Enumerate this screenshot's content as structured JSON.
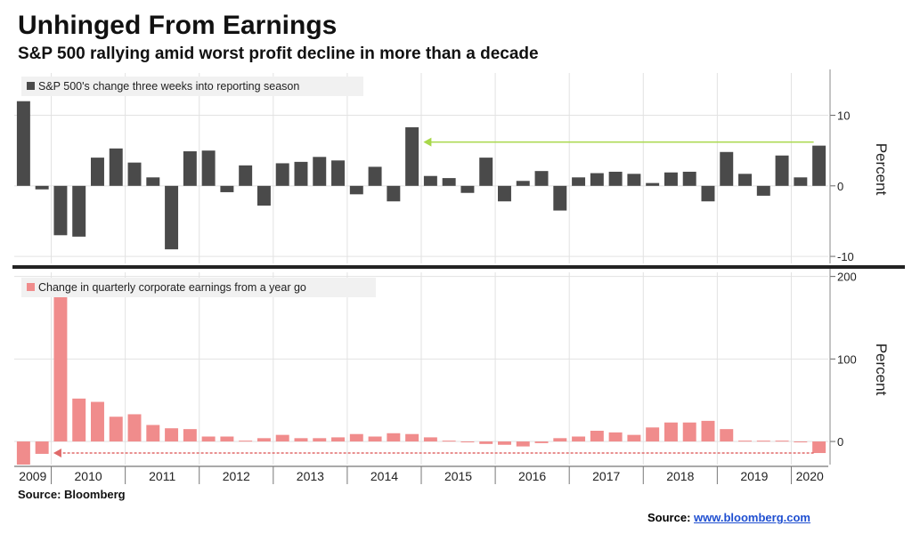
{
  "title": "Unhinged From Earnings",
  "subtitle": "S&P 500 rallying amid worst profit decline in more than a decade",
  "source": "Source: Bloomberg",
  "credit_prefix": "Source: ",
  "credit_link": "www.bloomberg.com",
  "colors": {
    "top_bars": "#4a4a4a",
    "bottom_bars": "#f08c8c",
    "top_arrow": "#a8d84a",
    "bottom_arrow": "#e06a6a",
    "divider": "#222222",
    "grid": "#e2e2e2"
  },
  "chart_data": [
    {
      "type": "bar",
      "legend": "S&P 500's change three weeks into reporting season",
      "ylabel": "Percent",
      "ylim": [
        -11,
        16
      ],
      "yticks": [
        10,
        0,
        -10
      ],
      "ytick_labels": [
        "10",
        "0",
        "-10"
      ],
      "values": [
        12,
        -0.5,
        -7,
        -7.2,
        4,
        5.3,
        3.3,
        1.2,
        -9,
        4.9,
        5,
        -0.9,
        2.9,
        -2.8,
        3.2,
        3.4,
        4.1,
        3.6,
        -1.2,
        2.7,
        -2.2,
        8.3,
        1.4,
        1.1,
        -1,
        4,
        -2.2,
        0.7,
        2.1,
        -3.5,
        1.2,
        1.8,
        2,
        1.7,
        0.4,
        1.9,
        2,
        -2.2,
        4.8,
        1.7,
        -1.4,
        4.3,
        1.2,
        5.7
      ]
    },
    {
      "type": "bar",
      "legend": "Change in quarterly corporate earnings from a year go",
      "ylabel": "Percent",
      "ylim": [
        -28,
        205
      ],
      "yticks": [
        200,
        100,
        0
      ],
      "ytick_labels": [
        "200",
        "100",
        "0"
      ],
      "values": [
        -28,
        -15,
        175,
        52,
        48,
        30,
        33,
        20,
        16,
        15,
        6,
        6,
        1,
        4,
        8,
        4,
        4,
        5,
        9,
        6,
        10,
        9,
        5,
        1,
        -1,
        -3,
        -4,
        -6,
        -2,
        4,
        6,
        13,
        11,
        8,
        17,
        23,
        23,
        25,
        15,
        1,
        1,
        1,
        0,
        -14
      ]
    }
  ],
  "x_axis": {
    "years": [
      "2009",
      "2010",
      "2011",
      "2012",
      "2013",
      "2014",
      "2015",
      "2016",
      "2017",
      "2018",
      "2019",
      "2020"
    ],
    "year_start_index": [
      0,
      2,
      6,
      10,
      14,
      18,
      22,
      26,
      30,
      34,
      38,
      42
    ]
  }
}
